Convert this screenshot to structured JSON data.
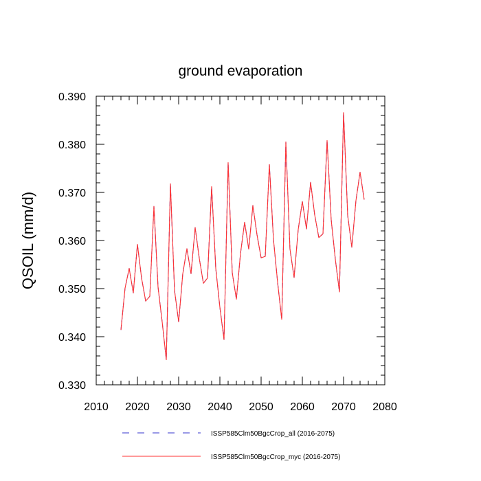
{
  "chart_data": {
    "type": "line",
    "title": "ground evaporation",
    "xlabel": "",
    "ylabel": "QSOIL  (mm/d)",
    "xlim": [
      2010,
      2080
    ],
    "ylim": [
      0.33,
      0.39
    ],
    "xticks": [
      2010,
      2020,
      2030,
      2040,
      2050,
      2060,
      2070,
      2080
    ],
    "xtick_labels": [
      "2010",
      "2020",
      "2030",
      "2040",
      "2050",
      "2060",
      "2070",
      "2080"
    ],
    "yticks": [
      0.33,
      0.34,
      0.35,
      0.36,
      0.37,
      0.38,
      0.39
    ],
    "ytick_labels": [
      "0.330",
      "0.340",
      "0.350",
      "0.360",
      "0.370",
      "0.380",
      "0.390"
    ],
    "grid": false,
    "legend_position": "bottom",
    "x": [
      2016,
      2017,
      2018,
      2019,
      2020,
      2021,
      2022,
      2023,
      2024,
      2025,
      2026,
      2027,
      2028,
      2029,
      2030,
      2031,
      2032,
      2033,
      2034,
      2035,
      2036,
      2037,
      2038,
      2039,
      2040,
      2041,
      2042,
      2043,
      2044,
      2045,
      2046,
      2047,
      2048,
      2049,
      2050,
      2051,
      2052,
      2053,
      2054,
      2055,
      2056,
      2057,
      2058,
      2059,
      2060,
      2061,
      2062,
      2063,
      2064,
      2065,
      2066,
      2067,
      2068,
      2069,
      2070,
      2071,
      2072,
      2073,
      2074,
      2075
    ],
    "series": [
      {
        "name": "ISSP585Clm50BgcCrop_all (2016-2075)",
        "color": "#3333cc",
        "dash": "dashed",
        "values": [
          0.3414,
          0.3501,
          0.3542,
          0.3491,
          0.3592,
          0.3522,
          0.3474,
          0.3484,
          0.3671,
          0.3503,
          0.3431,
          0.3352,
          0.3718,
          0.3496,
          0.3431,
          0.3531,
          0.3583,
          0.3531,
          0.3627,
          0.3563,
          0.3511,
          0.3522,
          0.3712,
          0.3542,
          0.3461,
          0.3394,
          0.3762,
          0.3533,
          0.3478,
          0.3573,
          0.3638,
          0.3582,
          0.3673,
          0.3612,
          0.3564,
          0.3567,
          0.3758,
          0.3602,
          0.3513,
          0.3436,
          0.3805,
          0.3582,
          0.3523,
          0.3623,
          0.3681,
          0.3624,
          0.3721,
          0.3653,
          0.3606,
          0.3614,
          0.3808,
          0.3643,
          0.3561,
          0.3493,
          0.3866,
          0.3652,
          0.3586,
          0.3683,
          0.3742,
          0.3685
        ]
      },
      {
        "name": "ISSP585Clm50BgcCrop_myc (2016-2075)",
        "color": "#ff3333",
        "dash": "solid",
        "values": [
          0.3414,
          0.3501,
          0.3542,
          0.3491,
          0.3592,
          0.3522,
          0.3474,
          0.3484,
          0.3671,
          0.3503,
          0.3431,
          0.3352,
          0.3718,
          0.3496,
          0.3431,
          0.3531,
          0.3583,
          0.3531,
          0.3627,
          0.3563,
          0.3511,
          0.3522,
          0.3712,
          0.3542,
          0.3461,
          0.3394,
          0.3762,
          0.3533,
          0.3478,
          0.3573,
          0.3638,
          0.3582,
          0.3673,
          0.3612,
          0.3564,
          0.3567,
          0.3758,
          0.3602,
          0.3513,
          0.3436,
          0.3805,
          0.3582,
          0.3523,
          0.3623,
          0.3681,
          0.3624,
          0.3721,
          0.3653,
          0.3606,
          0.3614,
          0.3808,
          0.3643,
          0.3561,
          0.3493,
          0.3866,
          0.3652,
          0.3586,
          0.3683,
          0.3742,
          0.3685
        ]
      }
    ]
  }
}
